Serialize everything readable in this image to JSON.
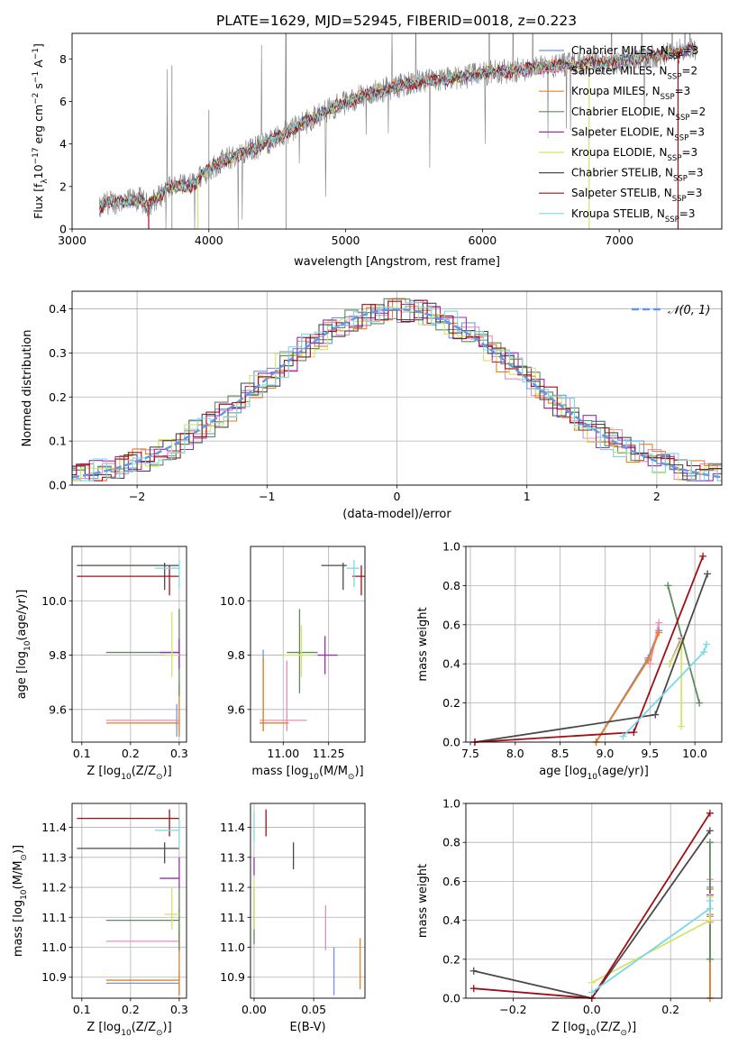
{
  "figure": {
    "title": "PLATE=1629, MJD=52945, FIBERID=0018, z=0.223"
  },
  "colors": {
    "Chabrier MILES": "#6f95e0",
    "Salpeter MILES": "#ee8cb9",
    "Kroupa MILES": "#e8801f",
    "Chabrier ELODIE": "#5e8a5e",
    "Salpeter ELODIE": "#9b2fae",
    "Kroupa ELODIE": "#d6e36a",
    "Chabrier STELIB": "#4a4a4a",
    "Salpeter STELIB": "#a00f16",
    "Kroupa STELIB": "#7ad8e6",
    "data": "#808080",
    "normal": "#6495ed"
  },
  "chart_data": [
    {
      "id": "spectrum",
      "type": "line",
      "title": "PLATE=1629, MJD=52945, FIBERID=0018, z=0.223",
      "xlabel": "wavelength [Angstrom, rest frame]",
      "ylabel": "Flux [fλ10⁻¹⁷ erg cm⁻² s⁻¹ A⁻¹]",
      "xlim": [
        3000,
        7750
      ],
      "ylim": [
        0,
        9.2
      ],
      "xticks": [
        3000,
        4000,
        5000,
        6000,
        7000
      ],
      "yticks": [
        0,
        2,
        4,
        6,
        8
      ],
      "grid": false,
      "legend_position": "right",
      "legend": [
        {
          "label": "Chabrier MILES, N",
          "sub": "SSP",
          "tail": "=3"
        },
        {
          "label": "Salpeter MILES, N",
          "sub": "SSP",
          "tail": "=2"
        },
        {
          "label": "Kroupa MILES, N",
          "sub": "SSP",
          "tail": "=3"
        },
        {
          "label": "Chabrier ELODIE, N",
          "sub": "SSP",
          "tail": "=2"
        },
        {
          "label": "Salpeter ELODIE, N",
          "sub": "SSP",
          "tail": "=3"
        },
        {
          "label": "Kroupa ELODIE, N",
          "sub": "SSP",
          "tail": "=3"
        },
        {
          "label": "Chabrier STELIB, N",
          "sub": "SSP",
          "tail": "=3"
        },
        {
          "label": "Salpeter STELIB, N",
          "sub": "SSP",
          "tail": "=3"
        },
        {
          "label": "Kroupa STELIB, N",
          "sub": "SSP",
          "tail": "=3"
        }
      ],
      "continuum": {
        "x": [
          3200,
          3250,
          3400,
          3500,
          3550,
          3650,
          3700,
          3800,
          3900,
          3950,
          4000,
          4100,
          4300,
          4500,
          4700,
          4900,
          5100,
          5300,
          5500,
          5700,
          6000,
          6300,
          6600,
          6800,
          7000,
          7200,
          7400,
          7550
        ],
        "y": [
          0.9,
          1.25,
          1.3,
          1.4,
          1.1,
          1.6,
          2.0,
          2.0,
          2.1,
          2.6,
          2.8,
          3.2,
          3.7,
          4.3,
          5.0,
          5.7,
          6.2,
          6.6,
          6.9,
          7.0,
          7.3,
          7.5,
          7.7,
          7.8,
          7.9,
          8.1,
          8.3,
          8.5
        ]
      }
    },
    {
      "id": "residuals",
      "type": "line",
      "xlabel": "(data-model)/error",
      "ylabel": "Normed distribution",
      "xlim": [
        -2.5,
        2.5
      ],
      "ylim": [
        0,
        0.44
      ],
      "xticks": [
        -2,
        -1,
        0,
        1,
        2
      ],
      "yticks": [
        0.0,
        0.1,
        0.2,
        0.3,
        0.4
      ],
      "grid": true,
      "legend_position": "top-right",
      "legend": [
        "𝒩(0, 1)"
      ]
    },
    {
      "id": "age-vs-Z",
      "type": "scatter",
      "xlabel": "Z [log10(Z/Z⊙)]",
      "ylabel": "age [log10(age/yr)]",
      "xlim": [
        0.08,
        0.315
      ],
      "ylim": [
        9.48,
        10.2
      ],
      "xticks": [
        0.1,
        0.2,
        0.3
      ],
      "yticks": [
        9.6,
        9.8,
        10.0
      ],
      "grid": true,
      "points": [
        {
          "model": "Chabrier MILES",
          "x": 0.295,
          "xlo": 0.2,
          "xhi": 0.3,
          "y": 9.55,
          "ylo": 9.5,
          "yhi": 9.62
        },
        {
          "model": "Salpeter MILES",
          "x": 0.3,
          "xlo": 0.15,
          "xhi": 0.3,
          "y": 9.56,
          "ylo": 9.52,
          "yhi": 9.6
        },
        {
          "model": "Kroupa MILES",
          "x": 0.3,
          "xlo": 0.15,
          "xhi": 0.3,
          "y": 9.55,
          "ylo": 9.5,
          "yhi": 9.7
        },
        {
          "model": "Chabrier ELODIE",
          "x": 0.3,
          "xlo": 0.15,
          "xhi": 0.3,
          "y": 9.81,
          "ylo": 9.65,
          "yhi": 9.97
        },
        {
          "model": "Salpeter ELODIE",
          "x": 0.3,
          "xlo": 0.26,
          "xhi": 0.3,
          "y": 9.81,
          "ylo": 9.75,
          "yhi": 9.86
        },
        {
          "model": "Kroupa ELODIE",
          "x": 0.285,
          "xlo": 0.27,
          "xhi": 0.3,
          "y": 9.8,
          "ylo": 9.72,
          "yhi": 9.96
        },
        {
          "model": "Chabrier STELIB",
          "x": 0.27,
          "xlo": 0.09,
          "xhi": 0.3,
          "y": 10.13,
          "ylo": 10.04,
          "yhi": 10.14
        },
        {
          "model": "Salpeter STELIB",
          "x": 0.28,
          "xlo": 0.09,
          "xhi": 0.3,
          "y": 10.09,
          "ylo": 10.02,
          "yhi": 10.13
        },
        {
          "model": "Kroupa STELIB",
          "x": 0.3,
          "xlo": 0.25,
          "xhi": 0.3,
          "y": 10.12,
          "ylo": 10.05,
          "yhi": 10.15
        }
      ]
    },
    {
      "id": "age-vs-mass",
      "type": "scatter",
      "xlabel": "mass [log10(M/M⊙)]",
      "ylabel": "",
      "xlim": [
        10.82,
        11.45
      ],
      "ylim": [
        9.48,
        10.2
      ],
      "xticks": [
        11.0,
        11.25
      ],
      "yticks": [
        9.6,
        9.8,
        10.0
      ],
      "grid": true,
      "points": [
        {
          "model": "Chabrier MILES",
          "x": 10.89,
          "xlo": 10.87,
          "xhi": 11.03,
          "y": 9.55,
          "ylo": 9.52,
          "yhi": 9.82
        },
        {
          "model": "Salpeter MILES",
          "x": 11.02,
          "xlo": 10.87,
          "xhi": 11.13,
          "y": 9.56,
          "ylo": 9.52,
          "yhi": 9.78
        },
        {
          "model": "Kroupa MILES",
          "x": 10.89,
          "xlo": 10.87,
          "xhi": 11.03,
          "y": 9.55,
          "ylo": 9.52,
          "yhi": 9.79
        },
        {
          "model": "Chabrier ELODIE",
          "x": 11.09,
          "xlo": 11.02,
          "xhi": 11.19,
          "y": 9.81,
          "ylo": 9.66,
          "yhi": 9.97
        },
        {
          "model": "Salpeter ELODIE",
          "x": 11.23,
          "xlo": 11.19,
          "xhi": 11.3,
          "y": 9.8,
          "ylo": 9.73,
          "yhi": 9.87
        },
        {
          "model": "Kroupa ELODIE",
          "x": 11.1,
          "xlo": 11.0,
          "xhi": 11.16,
          "y": 9.8,
          "ylo": 9.72,
          "yhi": 9.91
        },
        {
          "model": "Chabrier STELIB",
          "x": 11.33,
          "xlo": 11.21,
          "xhi": 11.35,
          "y": 10.13,
          "ylo": 10.04,
          "yhi": 10.14
        },
        {
          "model": "Salpeter STELIB",
          "x": 11.43,
          "xlo": 11.38,
          "xhi": 11.47,
          "y": 10.09,
          "ylo": 10.02,
          "yhi": 10.13
        },
        {
          "model": "Kroupa STELIB",
          "x": 11.39,
          "xlo": 11.35,
          "xhi": 11.42,
          "y": 10.12,
          "ylo": 10.05,
          "yhi": 10.15
        }
      ]
    },
    {
      "id": "mass-weight-vs-age",
      "type": "line",
      "xlabel": "age [log10(age/yr)]",
      "ylabel": "mass weight",
      "xlim": [
        7.45,
        10.3
      ],
      "ylim": [
        0,
        1.0
      ],
      "xticks": [
        7.5,
        8.0,
        8.5,
        9.0,
        9.5,
        10.0
      ],
      "yticks": [
        0.0,
        0.2,
        0.4,
        0.6,
        0.8,
        1.0
      ],
      "grid": true,
      "series": [
        {
          "model": "Chabrier MILES",
          "x": [
            8.9,
            9.48,
            9.6
          ],
          "y": [
            0.0,
            0.43,
            0.57
          ]
        },
        {
          "model": "Salpeter MILES",
          "x": [
            9.5,
            9.6
          ],
          "y": [
            0.4,
            0.61
          ]
        },
        {
          "model": "Kroupa MILES",
          "x": [
            8.9,
            9.48,
            9.6
          ],
          "y": [
            0.0,
            0.42,
            0.56
          ]
        },
        {
          "model": "Chabrier ELODIE",
          "x": [
            9.7,
            10.05
          ],
          "y": [
            0.8,
            0.2
          ]
        },
        {
          "model": "Salpeter ELODIE",
          "x": [
            9.72,
            9.85
          ],
          "y": [
            0.4,
            0.53
          ]
        },
        {
          "model": "Kroupa ELODIE",
          "x": [
            9.72,
            9.85,
            9.85
          ],
          "y": [
            0.4,
            0.52,
            0.08
          ]
        },
        {
          "model": "Chabrier STELIB",
          "x": [
            7.55,
            9.56,
            10.14
          ],
          "y": [
            0.0,
            0.14,
            0.86
          ]
        },
        {
          "model": "Salpeter STELIB",
          "x": [
            7.55,
            9.32,
            10.09
          ],
          "y": [
            0.0,
            0.05,
            0.95
          ]
        },
        {
          "model": "Kroupa STELIB",
          "x": [
            9.2,
            10.1,
            10.13
          ],
          "y": [
            0.03,
            0.46,
            0.5
          ]
        }
      ]
    },
    {
      "id": "mass-vs-Z",
      "type": "scatter",
      "xlabel": "Z [log10(Z/Z⊙)]",
      "ylabel": "mass [log10(M/M⊙)]",
      "xlim": [
        0.08,
        0.315
      ],
      "ylim": [
        10.83,
        11.48
      ],
      "xticks": [
        0.1,
        0.2,
        0.3
      ],
      "yticks": [
        10.9,
        11.0,
        11.1,
        11.2,
        11.3,
        11.4
      ],
      "grid": true,
      "points": [
        {
          "model": "Chabrier MILES",
          "x": 0.3,
          "xlo": 0.15,
          "xhi": 0.3,
          "y": 10.88,
          "ylo": 10.84,
          "yhi": 10.92
        },
        {
          "model": "Salpeter MILES",
          "x": 0.3,
          "xlo": 0.15,
          "xhi": 0.3,
          "y": 11.02,
          "ylo": 10.98,
          "yhi": 11.06
        },
        {
          "model": "Kroupa MILES",
          "x": 0.3,
          "xlo": 0.15,
          "xhi": 0.3,
          "y": 10.89,
          "ylo": 10.84,
          "yhi": 11.13
        },
        {
          "model": "Chabrier ELODIE",
          "x": 0.3,
          "xlo": 0.15,
          "xhi": 0.3,
          "y": 11.09,
          "ylo": 10.99,
          "yhi": 11.2
        },
        {
          "model": "Salpeter ELODIE",
          "x": 0.3,
          "xlo": 0.26,
          "xhi": 0.3,
          "y": 11.23,
          "ylo": 11.2,
          "yhi": 11.3
        },
        {
          "model": "Kroupa ELODIE",
          "x": 0.285,
          "xlo": 0.27,
          "xhi": 0.3,
          "y": 11.11,
          "ylo": 11.06,
          "yhi": 11.2
        },
        {
          "model": "Chabrier STELIB",
          "x": 0.27,
          "xlo": 0.09,
          "xhi": 0.3,
          "y": 11.33,
          "ylo": 11.28,
          "yhi": 11.35
        },
        {
          "model": "Salpeter STELIB",
          "x": 0.28,
          "xlo": 0.09,
          "xhi": 0.3,
          "y": 11.43,
          "ylo": 11.37,
          "yhi": 11.46
        },
        {
          "model": "Kroupa STELIB",
          "x": 0.3,
          "xlo": 0.25,
          "xhi": 0.3,
          "y": 11.39,
          "ylo": 11.33,
          "yhi": 11.43
        }
      ]
    },
    {
      "id": "mass-vs-EBV",
      "type": "scatter",
      "xlabel": "E(B-V)",
      "ylabel": "",
      "xlim": [
        -0.003,
        0.093
      ],
      "ylim": [
        10.83,
        11.48
      ],
      "xticks": [
        0.0,
        0.05
      ],
      "yticks": [
        10.9,
        11.0,
        11.1,
        11.2,
        11.3,
        11.4
      ],
      "grid": true,
      "points": [
        {
          "model": "Chabrier MILES",
          "x": 0.067,
          "ylo": 10.84,
          "yhi": 11.0
        },
        {
          "model": "Salpeter MILES",
          "x": 0.06,
          "ylo": 10.99,
          "yhi": 11.14
        },
        {
          "model": "Kroupa MILES",
          "x": 0.089,
          "ylo": 10.86,
          "yhi": 11.03
        },
        {
          "model": "Chabrier ELODIE",
          "x": 0.0,
          "ylo": 11.01,
          "yhi": 11.2
        },
        {
          "model": "Salpeter ELODIE",
          "x": 0.0,
          "ylo": 11.24,
          "yhi": 11.3
        },
        {
          "model": "Kroupa ELODIE",
          "x": 0.0,
          "ylo": 11.06,
          "yhi": 11.23
        },
        {
          "model": "Chabrier STELIB",
          "x": 0.033,
          "ylo": 11.26,
          "yhi": 11.35
        },
        {
          "model": "Salpeter STELIB",
          "x": 0.01,
          "ylo": 11.37,
          "yhi": 11.46
        },
        {
          "model": "Kroupa STELIB",
          "x": 0.0,
          "ylo": 11.35,
          "yhi": 11.45
        }
      ]
    },
    {
      "id": "mass-weight-vs-Z",
      "type": "line",
      "xlabel": "Z [log10(Z/Z⊙)]",
      "ylabel": "mass weight",
      "xlim": [
        -0.32,
        0.33
      ],
      "ylim": [
        0,
        1.0
      ],
      "xticks": [
        -0.2,
        0.0,
        0.2
      ],
      "yticks": [
        0.0,
        0.2,
        0.4,
        0.6,
        0.8,
        1.0
      ],
      "grid": true,
      "series": [
        {
          "model": "Chabrier MILES",
          "x": [
            0.3,
            0.3,
            0.3
          ],
          "y": [
            0.0,
            0.43,
            0.57
          ]
        },
        {
          "model": "Salpeter MILES",
          "x": [
            0.3,
            0.3
          ],
          "y": [
            0.39,
            0.61
          ]
        },
        {
          "model": "Kroupa MILES",
          "x": [
            0.3,
            0.3,
            0.3
          ],
          "y": [
            0.0,
            0.42,
            0.56
          ]
        },
        {
          "model": "Chabrier ELODIE",
          "x": [
            0.3,
            0.3
          ],
          "y": [
            0.2,
            0.8
          ]
        },
        {
          "model": "Salpeter ELODIE",
          "x": [
            0.3,
            0.3
          ],
          "y": [
            0.4,
            0.53
          ]
        },
        {
          "model": "Kroupa ELODIE",
          "x": [
            0.0,
            0.3,
            0.3
          ],
          "y": [
            0.08,
            0.4,
            0.52
          ]
        },
        {
          "model": "Chabrier STELIB",
          "x": [
            -0.3,
            0.0,
            0.3
          ],
          "y": [
            0.14,
            0.0,
            0.86
          ]
        },
        {
          "model": "Salpeter STELIB",
          "x": [
            -0.3,
            0.0,
            0.3
          ],
          "y": [
            0.05,
            0.0,
            0.95
          ]
        },
        {
          "model": "Kroupa STELIB",
          "x": [
            0.0,
            0.3,
            0.3
          ],
          "y": [
            0.03,
            0.46,
            0.5
          ]
        }
      ]
    }
  ]
}
